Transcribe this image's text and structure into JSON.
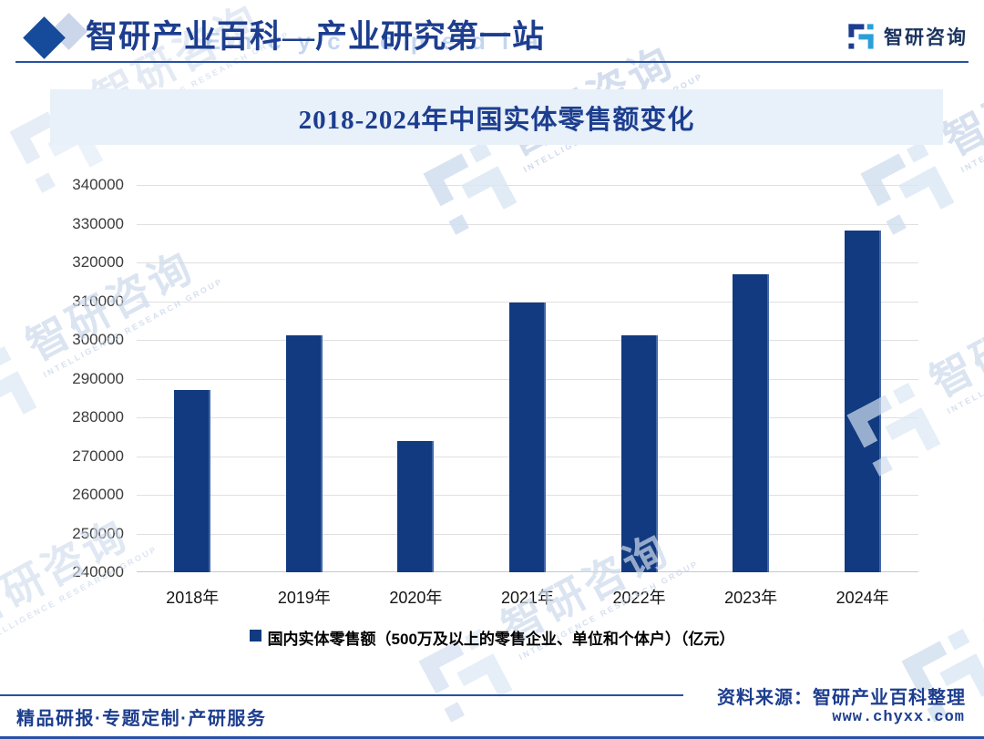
{
  "header": {
    "title": "智研产业百科—产业研究第一站",
    "logo_text": "智研咨询"
  },
  "chart_data": {
    "type": "bar",
    "title": "2018-2024年中国实体零售额变化",
    "categories": [
      "2018年",
      "2019年",
      "2020年",
      "2021年",
      "2022年",
      "2023年",
      "2024年"
    ],
    "values": [
      287000,
      301300,
      273900,
      309700,
      301300,
      316900,
      328200
    ],
    "legend": "国内实体零售额（500万及以上的零售企业、单位和个体户）（亿元）",
    "xlabel": "",
    "ylabel": "",
    "ylim": [
      240000,
      340000
    ],
    "ytick_step": 10000,
    "grid": true,
    "legend_position": "bottom",
    "bar_color": "#113a80"
  },
  "footer": {
    "services": "精品研报·专题定制·产研服务",
    "source": "资料来源：智研产业百科整理",
    "website": "www.chyxx.com"
  },
  "watermark": {
    "cn": "智研咨询",
    "en": "INTELLIGENCE RESEARCH GROUP",
    "latin": "Encyclopedia"
  },
  "colors": {
    "accent_blue": "#1d3e8f",
    "bar_navy": "#113a80",
    "logo_navy": "#1c3e8e",
    "logo_teal": "#2a9fd8",
    "title_band_bg": "#e8f0f9",
    "gridline": "#e0e0e0"
  }
}
